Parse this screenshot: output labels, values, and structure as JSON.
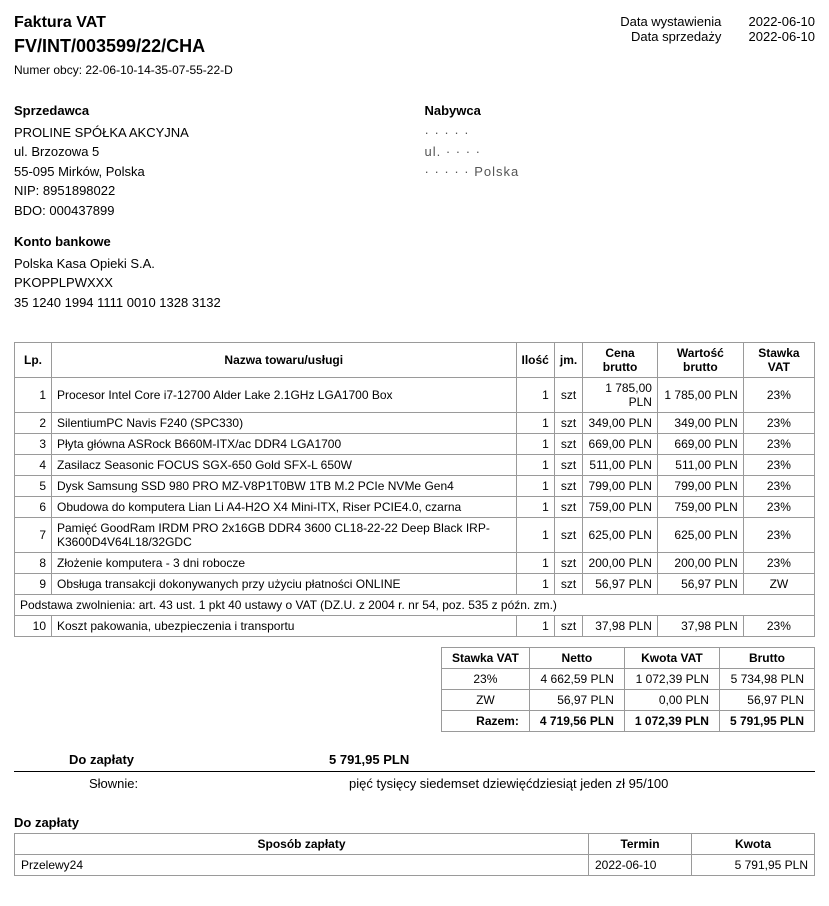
{
  "header": {
    "title_label": "Faktura VAT",
    "invoice_number": "FV/INT/003599/22/CHA",
    "foreign_number_label": "Numer obcy:",
    "foreign_number": "22-06-10-14-35-07-55-22-D",
    "issue_date_label": "Data wystawienia",
    "issue_date": "2022-06-10",
    "sale_date_label": "Data sprzedaży",
    "sale_date": "2022-06-10"
  },
  "seller": {
    "heading": "Sprzedawca",
    "name": "PROLINE SPÓŁKA AKCYJNA",
    "street": "ul. Brzozowa 5",
    "city": "55-095 Mirków, Polska",
    "nip_label": "NIP:",
    "nip": "8951898022",
    "bdo_label": "BDO:",
    "bdo": "000437899"
  },
  "buyer": {
    "heading": "Nabywca",
    "name": "· · · · ·",
    "street": "ul. · · · ·",
    "city": "· · · · ·   Polska"
  },
  "bank": {
    "heading": "Konto bankowe",
    "bank_name": "Polska Kasa Opieki S.A.",
    "swift": "PKOPPLPWXXX",
    "iban": "35 1240 1994 1111 0010 1328 3132"
  },
  "items_table": {
    "columns": {
      "lp": "Lp.",
      "name": "Nazwa towaru/usługi",
      "qty": "Ilość",
      "unit": "jm.",
      "price": "Cena brutto",
      "value": "Wartość brutto",
      "vat": "Stawka VAT"
    },
    "rows": [
      {
        "lp": "1",
        "name": "Procesor Intel Core i7-12700 Alder Lake 2.1GHz LGA1700 Box",
        "qty": "1",
        "unit": "szt",
        "price": "1 785,00 PLN",
        "value": "1 785,00 PLN",
        "vat": "23%"
      },
      {
        "lp": "2",
        "name": "SilentiumPC Navis F240 (SPC330)",
        "qty": "1",
        "unit": "szt",
        "price": "349,00 PLN",
        "value": "349,00 PLN",
        "vat": "23%"
      },
      {
        "lp": "3",
        "name": "Płyta główna ASRock B660M-ITX/ac DDR4 LGA1700",
        "qty": "1",
        "unit": "szt",
        "price": "669,00 PLN",
        "value": "669,00 PLN",
        "vat": "23%"
      },
      {
        "lp": "4",
        "name": "Zasilacz Seasonic FOCUS SGX-650 Gold SFX-L 650W",
        "qty": "1",
        "unit": "szt",
        "price": "511,00 PLN",
        "value": "511,00 PLN",
        "vat": "23%"
      },
      {
        "lp": "5",
        "name": "Dysk Samsung SSD 980 PRO MZ-V8P1T0BW 1TB M.2 PCIe NVMe Gen4",
        "qty": "1",
        "unit": "szt",
        "price": "799,00 PLN",
        "value": "799,00 PLN",
        "vat": "23%"
      },
      {
        "lp": "6",
        "name": "Obudowa do komputera Lian Li A4-H2O X4 Mini-ITX, Riser PCIE4.0, czarna",
        "qty": "1",
        "unit": "szt",
        "price": "759,00 PLN",
        "value": "759,00 PLN",
        "vat": "23%"
      },
      {
        "lp": "7",
        "name": "Pamięć GoodRam IRDM PRO 2x16GB DDR4 3600 CL18-22-22 Deep Black IRP-K3600D4V64L18/32GDC",
        "qty": "1",
        "unit": "szt",
        "price": "625,00 PLN",
        "value": "625,00 PLN",
        "vat": "23%"
      },
      {
        "lp": "8",
        "name": "Złożenie komputera - 3 dni robocze",
        "qty": "1",
        "unit": "szt",
        "price": "200,00 PLN",
        "value": "200,00 PLN",
        "vat": "23%"
      },
      {
        "lp": "9",
        "name": "Obsługa transakcji dokonywanych przy użyciu płatności ONLINE",
        "qty": "1",
        "unit": "szt",
        "price": "56,97 PLN",
        "value": "56,97 PLN",
        "vat": "ZW"
      }
    ],
    "exemption_note": "Podstawa zwolnienia: art. 43 ust. 1 pkt 40 ustawy o VAT (DZ.U. z 2004 r. nr 54, poz. 535 z późn. zm.)",
    "rows_after": [
      {
        "lp": "10",
        "name": "Koszt pakowania, ubezpieczenia i transportu",
        "qty": "1",
        "unit": "szt",
        "price": "37,98 PLN",
        "value": "37,98 PLN",
        "vat": "23%"
      }
    ]
  },
  "vat_summary": {
    "columns": {
      "rate": "Stawka VAT",
      "net": "Netto",
      "vat": "Kwota VAT",
      "gross": "Brutto"
    },
    "rows": [
      {
        "rate": "23%",
        "net": "4 662,59 PLN",
        "vat": "1 072,39 PLN",
        "gross": "5 734,98 PLN"
      },
      {
        "rate": "ZW",
        "net": "56,97 PLN",
        "vat": "0,00 PLN",
        "gross": "56,97 PLN"
      }
    ],
    "total": {
      "label": "Razem:",
      "net": "4 719,56 PLN",
      "vat": "1 072,39 PLN",
      "gross": "5 791,95 PLN"
    }
  },
  "totals": {
    "to_pay_label": "Do zapłaty",
    "to_pay_value": "5 791,95 PLN",
    "in_words_label": "Słownie:",
    "in_words_value": "pięć tysięcy siedemset dziewięćdziesiąt jeden zł 95/100"
  },
  "payment": {
    "heading": "Do zapłaty",
    "columns": {
      "method": "Sposób zapłaty",
      "term": "Termin",
      "amount": "Kwota"
    },
    "row": {
      "method": "Przelewy24",
      "term": "2022-06-10",
      "amount": "5 791,95 PLN"
    }
  }
}
